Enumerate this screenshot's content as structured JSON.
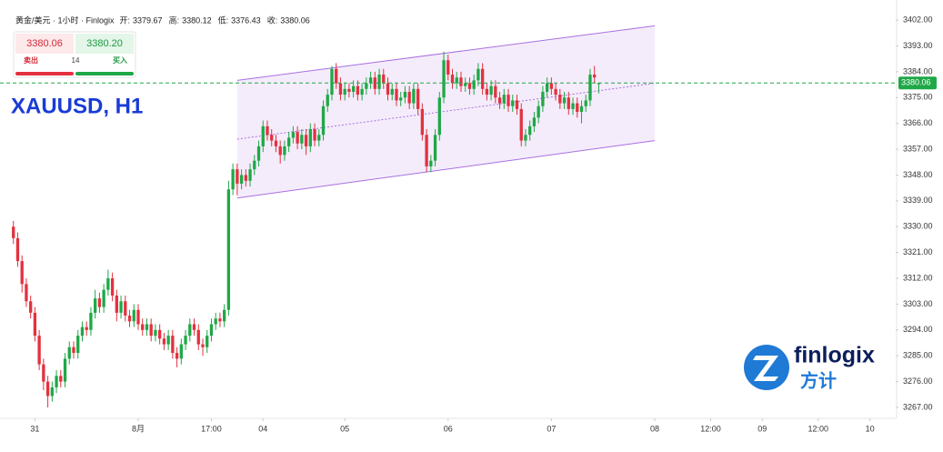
{
  "chart_data": {
    "type": "candlestick",
    "title": "XAUUSD, H1",
    "symbol_line": "黄金/美元 · 1小时 · Finlogix",
    "ohlc_labels": [
      "开:",
      "高:",
      "低:",
      "收:"
    ],
    "up_color": "#1fa847",
    "down_color": "#e3313f",
    "xlim": [
      -6,
      200
    ],
    "ylim": [
      3263.2,
      3409
    ],
    "xticks": [
      {
        "value": 0,
        "label": "31"
      },
      {
        "value": 24,
        "label": "8月"
      },
      {
        "value": 41,
        "label": "17:00"
      },
      {
        "value": 53,
        "label": "04"
      },
      {
        "value": 72,
        "label": "05"
      },
      {
        "value": 96,
        "label": "06"
      },
      {
        "value": 120,
        "label": "07"
      },
      {
        "value": 144,
        "label": "08"
      },
      {
        "value": 157,
        "label": "12:00"
      },
      {
        "value": 169,
        "label": "09"
      },
      {
        "value": 182,
        "label": "12:00"
      },
      {
        "value": 194,
        "label": "10"
      }
    ],
    "yticks": [
      {
        "value": 3267,
        "label": "3267.00"
      },
      {
        "value": 3276,
        "label": "3276.00"
      },
      {
        "value": 3285,
        "label": "3285.00"
      },
      {
        "value": 3294,
        "label": "3294.00"
      },
      {
        "value": 3303,
        "label": "3303.00"
      },
      {
        "value": 3312,
        "label": "3312.00"
      },
      {
        "value": 3321,
        "label": "3321.00"
      },
      {
        "value": 3330,
        "label": "3330.00"
      },
      {
        "value": 3339,
        "label": "3339.00"
      },
      {
        "value": 3348,
        "label": "3348.00"
      },
      {
        "value": 3357,
        "label": "3357.00"
      },
      {
        "value": 3366,
        "label": "3366.00"
      },
      {
        "value": 3375,
        "label": "3375.00"
      },
      {
        "value": 3384,
        "label": "3384.00"
      },
      {
        "value": 3393,
        "label": "3393.00"
      },
      {
        "value": 3402,
        "label": "3402.00"
      }
    ],
    "channel": {
      "start": 47,
      "end": 144,
      "upper": [
        3381,
        3400
      ],
      "lower": [
        3340,
        3360
      ],
      "color": "#a970e0"
    },
    "x": [
      -5,
      -4,
      -3,
      -2,
      -1,
      0,
      1,
      2,
      3,
      4,
      5,
      6,
      7,
      8,
      9,
      10,
      11,
      12,
      13,
      14,
      15,
      16,
      17,
      18,
      19,
      20,
      21,
      22,
      23,
      24,
      25,
      26,
      27,
      28,
      29,
      30,
      31,
      32,
      33,
      34,
      35,
      36,
      37,
      38,
      39,
      40,
      41,
      42,
      43,
      44,
      45,
      46,
      47,
      48,
      49,
      50,
      51,
      52,
      53,
      54,
      55,
      56,
      57,
      58,
      59,
      60,
      61,
      62,
      63,
      64,
      65,
      66,
      67,
      68,
      69,
      70,
      71,
      72,
      73,
      74,
      75,
      76,
      77,
      78,
      79,
      80,
      81,
      82,
      83,
      84,
      85,
      86,
      87,
      88,
      89,
      90,
      91,
      92,
      93,
      94,
      95,
      96,
      97,
      98,
      99,
      100,
      101,
      102,
      103,
      104,
      105,
      106,
      107,
      108,
      109,
      110,
      111,
      112,
      113,
      114,
      115,
      116,
      117,
      118,
      119,
      120,
      121,
      122,
      123,
      124,
      125,
      126,
      127,
      128,
      129,
      130,
      131
    ],
    "candles": [
      [
        3330,
        3332,
        3324,
        3326
      ],
      [
        3326,
        3328,
        3316,
        3318
      ],
      [
        3318,
        3320,
        3307,
        3310
      ],
      [
        3310,
        3312,
        3302,
        3304
      ],
      [
        3304,
        3306,
        3298,
        3300
      ],
      [
        3300,
        3302,
        3290,
        3292
      ],
      [
        3292,
        3294,
        3280,
        3282
      ],
      [
        3282,
        3284,
        3273,
        3276
      ],
      [
        3276,
        3278,
        3267,
        3271
      ],
      [
        3271,
        3276,
        3269,
        3274
      ],
      [
        3274,
        3280,
        3272,
        3278
      ],
      [
        3278,
        3280,
        3274,
        3276
      ],
      [
        3276,
        3286,
        3274,
        3284
      ],
      [
        3284,
        3290,
        3282,
        3288
      ],
      [
        3288,
        3290,
        3284,
        3286
      ],
      [
        3286,
        3294,
        3284,
        3292
      ],
      [
        3292,
        3297,
        3290,
        3295
      ],
      [
        3295,
        3297,
        3292,
        3294
      ],
      [
        3294,
        3302,
        3292,
        3300
      ],
      [
        3300,
        3308,
        3298,
        3305
      ],
      [
        3305,
        3307,
        3300,
        3302
      ],
      [
        3302,
        3310,
        3300,
        3308
      ],
      [
        3308,
        3315,
        3306,
        3312
      ],
      [
        3312,
        3314,
        3304,
        3306
      ],
      [
        3306,
        3308,
        3297,
        3300
      ],
      [
        3300,
        3306,
        3298,
        3304
      ],
      [
        3304,
        3306,
        3297,
        3299
      ],
      [
        3299,
        3301,
        3295,
        3297
      ],
      [
        3297,
        3303,
        3295,
        3301
      ],
      [
        3301,
        3303,
        3294,
        3296
      ],
      [
        3296,
        3298,
        3292,
        3294
      ],
      [
        3294,
        3298,
        3292,
        3296
      ],
      [
        3296,
        3298,
        3290,
        3292
      ],
      [
        3292,
        3296,
        3290,
        3294
      ],
      [
        3294,
        3296,
        3289,
        3291
      ],
      [
        3291,
        3293,
        3287,
        3289
      ],
      [
        3289,
        3294,
        3287,
        3292
      ],
      [
        3292,
        3294,
        3284,
        3286
      ],
      [
        3286,
        3288,
        3281,
        3284
      ],
      [
        3284,
        3291,
        3282,
        3289
      ],
      [
        3289,
        3294,
        3287,
        3292
      ],
      [
        3292,
        3298,
        3290,
        3296
      ],
      [
        3296,
        3298,
        3292,
        3294
      ],
      [
        3294,
        3296,
        3287,
        3289
      ],
      [
        3289,
        3291,
        3285,
        3288
      ],
      [
        3288,
        3294,
        3286,
        3292
      ],
      [
        3292,
        3298,
        3290,
        3296
      ],
      [
        3296,
        3300,
        3294,
        3298
      ],
      [
        3298,
        3300,
        3295,
        3297
      ],
      [
        3297,
        3303,
        3295,
        3301
      ],
      [
        3301,
        3346,
        3299,
        3343
      ],
      [
        3343,
        3352,
        3341,
        3350
      ],
      [
        3350,
        3352,
        3341,
        3345
      ],
      [
        3345,
        3350,
        3343,
        3348
      ],
      [
        3348,
        3350,
        3344,
        3346
      ],
      [
        3346,
        3352,
        3344,
        3350
      ],
      [
        3350,
        3355,
        3348,
        3353
      ],
      [
        3353,
        3360,
        3351,
        3358
      ],
      [
        3358,
        3367,
        3356,
        3365
      ],
      [
        3365,
        3367,
        3360,
        3362
      ],
      [
        3362,
        3364,
        3358,
        3360
      ],
      [
        3360,
        3362,
        3356,
        3358
      ],
      [
        3358,
        3360,
        3352,
        3355
      ],
      [
        3355,
        3360,
        3353,
        3358
      ],
      [
        3358,
        3363,
        3356,
        3361
      ],
      [
        3361,
        3365,
        3359,
        3363
      ],
      [
        3363,
        3365,
        3357,
        3359
      ],
      [
        3359,
        3364,
        3357,
        3362
      ],
      [
        3362,
        3364,
        3355,
        3358
      ],
      [
        3358,
        3366,
        3356,
        3364
      ],
      [
        3364,
        3366,
        3358,
        3360
      ],
      [
        3360,
        3364,
        3358,
        3362
      ],
      [
        3362,
        3374,
        3360,
        3372
      ],
      [
        3372,
        3378,
        3370,
        3376
      ],
      [
        3376,
        3386,
        3374,
        3385
      ],
      [
        3385,
        3387,
        3378,
        3380
      ],
      [
        3380,
        3382,
        3374,
        3376
      ],
      [
        3376,
        3380,
        3374,
        3378
      ],
      [
        3378,
        3380,
        3375,
        3377
      ],
      [
        3377,
        3381,
        3375,
        3379
      ],
      [
        3379,
        3381,
        3374,
        3376
      ],
      [
        3376,
        3380,
        3374,
        3378
      ],
      [
        3378,
        3382,
        3376,
        3380
      ],
      [
        3380,
        3384,
        3378,
        3382
      ],
      [
        3382,
        3384,
        3376,
        3378
      ],
      [
        3378,
        3385,
        3376,
        3383
      ],
      [
        3383,
        3385,
        3378,
        3380
      ],
      [
        3380,
        3382,
        3374,
        3376
      ],
      [
        3376,
        3380,
        3374,
        3378
      ],
      [
        3378,
        3380,
        3372,
        3374
      ],
      [
        3374,
        3377,
        3372,
        3375
      ],
      [
        3375,
        3379,
        3373,
        3377
      ],
      [
        3377,
        3379,
        3371,
        3373
      ],
      [
        3373,
        3380,
        3371,
        3378
      ],
      [
        3378,
        3380,
        3369,
        3371
      ],
      [
        3371,
        3373,
        3360,
        3362
      ],
      [
        3362,
        3364,
        3349,
        3351
      ],
      [
        3351,
        3355,
        3349,
        3353
      ],
      [
        3353,
        3364,
        3351,
        3362
      ],
      [
        3362,
        3377,
        3360,
        3375
      ],
      [
        3375,
        3391,
        3373,
        3388
      ],
      [
        3388,
        3390,
        3381,
        3383
      ],
      [
        3383,
        3385,
        3378,
        3380
      ],
      [
        3380,
        3384,
        3378,
        3382
      ],
      [
        3382,
        3384,
        3377,
        3379
      ],
      [
        3379,
        3382,
        3377,
        3380
      ],
      [
        3380,
        3382,
        3376,
        3378
      ],
      [
        3378,
        3383,
        3376,
        3381
      ],
      [
        3381,
        3387,
        3379,
        3385
      ],
      [
        3385,
        3387,
        3376,
        3378
      ],
      [
        3378,
        3380,
        3374,
        3376
      ],
      [
        3376,
        3381,
        3374,
        3379
      ],
      [
        3379,
        3381,
        3373,
        3375
      ],
      [
        3375,
        3377,
        3371,
        3373
      ],
      [
        3373,
        3378,
        3371,
        3376
      ],
      [
        3376,
        3378,
        3370,
        3372
      ],
      [
        3372,
        3376,
        3370,
        3374
      ],
      [
        3374,
        3376,
        3369,
        3371
      ],
      [
        3371,
        3373,
        3358,
        3360
      ],
      [
        3360,
        3364,
        3358,
        3362
      ],
      [
        3362,
        3367,
        3360,
        3365
      ],
      [
        3365,
        3370,
        3363,
        3368
      ],
      [
        3368,
        3374,
        3366,
        3372
      ],
      [
        3372,
        3379,
        3370,
        3377
      ],
      [
        3377,
        3382,
        3375,
        3380
      ],
      [
        3380,
        3382,
        3376,
        3378
      ],
      [
        3378,
        3380,
        3374,
        3376
      ],
      [
        3376,
        3378,
        3371,
        3373
      ],
      [
        3373,
        3377,
        3371,
        3375
      ],
      [
        3375,
        3377,
        3369,
        3371
      ],
      [
        3371,
        3375,
        3369,
        3373
      ],
      [
        3373,
        3375,
        3368,
        3370
      ],
      [
        3370,
        3374,
        3366,
        3372
      ],
      [
        3372,
        3376,
        3370,
        3374
      ],
      [
        3374,
        3385,
        3372,
        3383
      ],
      [
        3383,
        3386,
        3380,
        3382
      ],
      [
        3379.67,
        3380.12,
        3376.43,
        3380.06
      ]
    ]
  },
  "widget": {
    "sell_price": "3380.06",
    "buy_price": "3380.20",
    "sell": "卖出",
    "buy": "买入",
    "spread": "14"
  },
  "logo": {
    "name": "finlogix",
    "chinese": "方计"
  }
}
